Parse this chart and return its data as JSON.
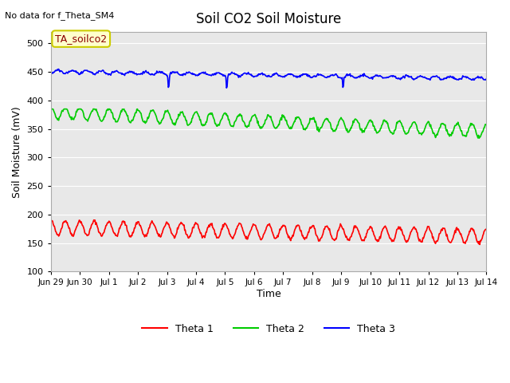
{
  "title": "Soil CO2 Soil Moisture",
  "top_left_text": "No data for f_Theta_SM4",
  "annotation_text": "TA_soilco2",
  "ylabel": "Soil Moisture (mV)",
  "xlabel": "Time",
  "ylim": [
    100,
    520
  ],
  "yticks": [
    100,
    150,
    200,
    250,
    300,
    350,
    400,
    450,
    500
  ],
  "x_labels": [
    "Jun 29",
    "Jun 30",
    "Jul 1",
    "Jul 2",
    "Jul 3",
    "Jul 4",
    "Jul 5",
    "Jul 6",
    "Jul 7",
    "Jul 8",
    "Jul 9",
    "Jul 10",
    "Jul 11",
    "Jul 12",
    "Jul 13",
    "Jul 14"
  ],
  "background_color": "#e8e8e8",
  "legend_entries": [
    "Theta 1",
    "Theta 2",
    "Theta 3"
  ],
  "line_colors": [
    "#ff0000",
    "#00cc00",
    "#0000ff"
  ]
}
